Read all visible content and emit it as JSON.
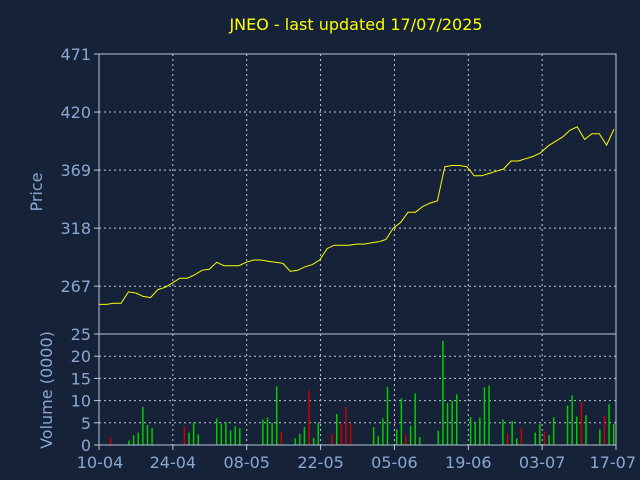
{
  "title": "JNEO - last updated 17/07/2025",
  "colors": {
    "background": "#152238",
    "title": "#ffff00",
    "axis_text": "#8aa8d2",
    "frame": "#b8c6da",
    "grid": "#c0c8d4",
    "price_line": "#ffff00",
    "volume_up": "#00cc00",
    "volume_down": "#cc0000"
  },
  "chart_data": [
    {
      "type": "line",
      "ylabel": "Price",
      "ylim": [
        225,
        471
      ],
      "y_ticks": [
        "471",
        "420",
        "369",
        "318",
        "267"
      ],
      "x_ticks": [
        "10-04",
        "24-04",
        "08-05",
        "22-05",
        "05-06",
        "19-06",
        "03-07",
        "17-07"
      ],
      "grid": true,
      "series": [
        {
          "x": [
            "10-04",
            "11-04",
            "14-04",
            "15-04",
            "16-04",
            "17-04",
            "18-04",
            "21-04",
            "22-04",
            "23-04",
            "24-04",
            "25-04",
            "28-04",
            "29-04",
            "30-04",
            "01-05",
            "02-05",
            "05-05",
            "06-05",
            "07-05",
            "08-05",
            "09-05",
            "12-05",
            "13-05",
            "14-05",
            "15-05",
            "16-05",
            "19-05",
            "20-05",
            "21-05",
            "22-05",
            "23-05",
            "26-05",
            "27-05",
            "28-05",
            "29-05",
            "30-05",
            "02-06",
            "03-06",
            "04-06",
            "05-06",
            "06-06",
            "09-06",
            "10-06",
            "11-06",
            "12-06",
            "13-06",
            "16-06",
            "17-06",
            "18-06",
            "19-06",
            "20-06",
            "23-06",
            "24-06",
            "25-06",
            "26-06",
            "27-06",
            "30-06",
            "01-07",
            "02-07",
            "03-07",
            "04-07",
            "07-07",
            "08-07",
            "09-07",
            "10-07",
            "11-07",
            "14-07",
            "15-07",
            "16-07",
            "17-07"
          ],
          "values": [
            251,
            251,
            252,
            252,
            262,
            261,
            258,
            257,
            264,
            266,
            270,
            274,
            274,
            277,
            281,
            282,
            288,
            285,
            285,
            285,
            288,
            290,
            290,
            289,
            288,
            287,
            280,
            281,
            284,
            286,
            290,
            300,
            303,
            303,
            303,
            304,
            304,
            305,
            306,
            308,
            318,
            323,
            332,
            332,
            337,
            340,
            342,
            372,
            373,
            373,
            372,
            364,
            364,
            366,
            368,
            370,
            377,
            377,
            379,
            381,
            384,
            390,
            394,
            398,
            404,
            407,
            396,
            401,
            401,
            391,
            405
          ]
        }
      ]
    },
    {
      "type": "bar",
      "ylabel": "Volume (0000)",
      "ylim": [
        0,
        25
      ],
      "y_ticks": [
        "25",
        "20",
        "15",
        "10",
        "5",
        "0"
      ],
      "x_ticks": [
        "10-04",
        "24-04",
        "08-05",
        "22-05",
        "05-06",
        "19-06",
        "03-07",
        "17-07"
      ],
      "grid": true,
      "bars": [
        {
          "x": 2,
          "value": 1.8,
          "dir": "down"
        },
        {
          "x": 6,
          "value": 1.0,
          "dir": "up"
        },
        {
          "x": 7,
          "value": 2.2,
          "dir": "up"
        },
        {
          "x": 8,
          "value": 2.8,
          "dir": "up"
        },
        {
          "x": 9,
          "value": 8.6,
          "dir": "up"
        },
        {
          "x": 10,
          "value": 4.5,
          "dir": "up"
        },
        {
          "x": 11,
          "value": 3.8,
          "dir": "up"
        },
        {
          "x": 18,
          "value": 4.1,
          "dir": "down"
        },
        {
          "x": 19,
          "value": 2.8,
          "dir": "up"
        },
        {
          "x": 20,
          "value": 5.0,
          "dir": "up"
        },
        {
          "x": 21,
          "value": 2.4,
          "dir": "up"
        },
        {
          "x": 25,
          "value": 6.0,
          "dir": "up"
        },
        {
          "x": 26,
          "value": 4.8,
          "dir": "up"
        },
        {
          "x": 27,
          "value": 5.2,
          "dir": "up"
        },
        {
          "x": 28,
          "value": 3.3,
          "dir": "up"
        },
        {
          "x": 29,
          "value": 4.2,
          "dir": "up"
        },
        {
          "x": 30,
          "value": 3.8,
          "dir": "up"
        },
        {
          "x": 35,
          "value": 5.7,
          "dir": "up"
        },
        {
          "x": 36,
          "value": 6.2,
          "dir": "up"
        },
        {
          "x": 37,
          "value": 5.0,
          "dir": "up"
        },
        {
          "x": 38,
          "value": 13.2,
          "dir": "up"
        },
        {
          "x": 39,
          "value": 3.0,
          "dir": "down"
        },
        {
          "x": 42,
          "value": 1.5,
          "dir": "up"
        },
        {
          "x": 43,
          "value": 2.5,
          "dir": "up"
        },
        {
          "x": 44,
          "value": 4.0,
          "dir": "up"
        },
        {
          "x": 45,
          "value": 12.3,
          "dir": "down"
        },
        {
          "x": 46,
          "value": 1.6,
          "dir": "up"
        },
        {
          "x": 47,
          "value": 5.0,
          "dir": "up"
        },
        {
          "x": 50,
          "value": 2.5,
          "dir": "down"
        },
        {
          "x": 51,
          "value": 7.0,
          "dir": "up"
        },
        {
          "x": 52,
          "value": 4.9,
          "dir": "down"
        },
        {
          "x": 53,
          "value": 8.6,
          "dir": "down"
        },
        {
          "x": 54,
          "value": 5.0,
          "dir": "down"
        },
        {
          "x": 59,
          "value": 4.0,
          "dir": "up"
        },
        {
          "x": 60,
          "value": 2.0,
          "dir": "up"
        },
        {
          "x": 61,
          "value": 6.0,
          "dir": "up"
        },
        {
          "x": 62,
          "value": 13.1,
          "dir": "up"
        },
        {
          "x": 64,
          "value": 3.5,
          "dir": "up"
        },
        {
          "x": 65,
          "value": 10.5,
          "dir": "up"
        },
        {
          "x": 66,
          "value": 2.5,
          "dir": "down"
        },
        {
          "x": 67,
          "value": 4.3,
          "dir": "up"
        },
        {
          "x": 68,
          "value": 11.6,
          "dir": "up"
        },
        {
          "x": 69,
          "value": 1.8,
          "dir": "up"
        },
        {
          "x": 73,
          "value": 3.2,
          "dir": "up"
        },
        {
          "x": 74,
          "value": 23.5,
          "dir": "up"
        },
        {
          "x": 75,
          "value": 9.5,
          "dir": "up"
        },
        {
          "x": 76,
          "value": 10.0,
          "dir": "up"
        },
        {
          "x": 77,
          "value": 11.4,
          "dir": "up"
        },
        {
          "x": 80,
          "value": 6.3,
          "dir": "up"
        },
        {
          "x": 81,
          "value": 5.0,
          "dir": "up"
        },
        {
          "x": 82,
          "value": 6.2,
          "dir": "up"
        },
        {
          "x": 83,
          "value": 13.0,
          "dir": "up"
        },
        {
          "x": 84,
          "value": 13.4,
          "dir": "up"
        },
        {
          "x": 87,
          "value": 5.8,
          "dir": "up"
        },
        {
          "x": 88,
          "value": 2.6,
          "dir": "down"
        },
        {
          "x": 89,
          "value": 5.4,
          "dir": "up"
        },
        {
          "x": 90,
          "value": 1.5,
          "dir": "up"
        },
        {
          "x": 91,
          "value": 3.8,
          "dir": "down"
        },
        {
          "x": 94,
          "value": 2.8,
          "dir": "up"
        },
        {
          "x": 95,
          "value": 4.7,
          "dir": "up"
        },
        {
          "x": 96,
          "value": 3.1,
          "dir": "down"
        },
        {
          "x": 97,
          "value": 2.2,
          "dir": "up"
        },
        {
          "x": 98,
          "value": 6.2,
          "dir": "up"
        },
        {
          "x": 101,
          "value": 8.9,
          "dir": "up"
        },
        {
          "x": 102,
          "value": 11.2,
          "dir": "up"
        },
        {
          "x": 103,
          "value": 6.4,
          "dir": "up"
        },
        {
          "x": 104,
          "value": 9.7,
          "dir": "down"
        },
        {
          "x": 105,
          "value": 6.7,
          "dir": "up"
        },
        {
          "x": 108,
          "value": 3.5,
          "dir": "up"
        },
        {
          "x": 109,
          "value": 6.6,
          "dir": "down"
        },
        {
          "x": 110,
          "value": 9.2,
          "dir": "up"
        },
        {
          "x": 111,
          "value": 4.7,
          "dir": "up"
        }
      ]
    }
  ]
}
